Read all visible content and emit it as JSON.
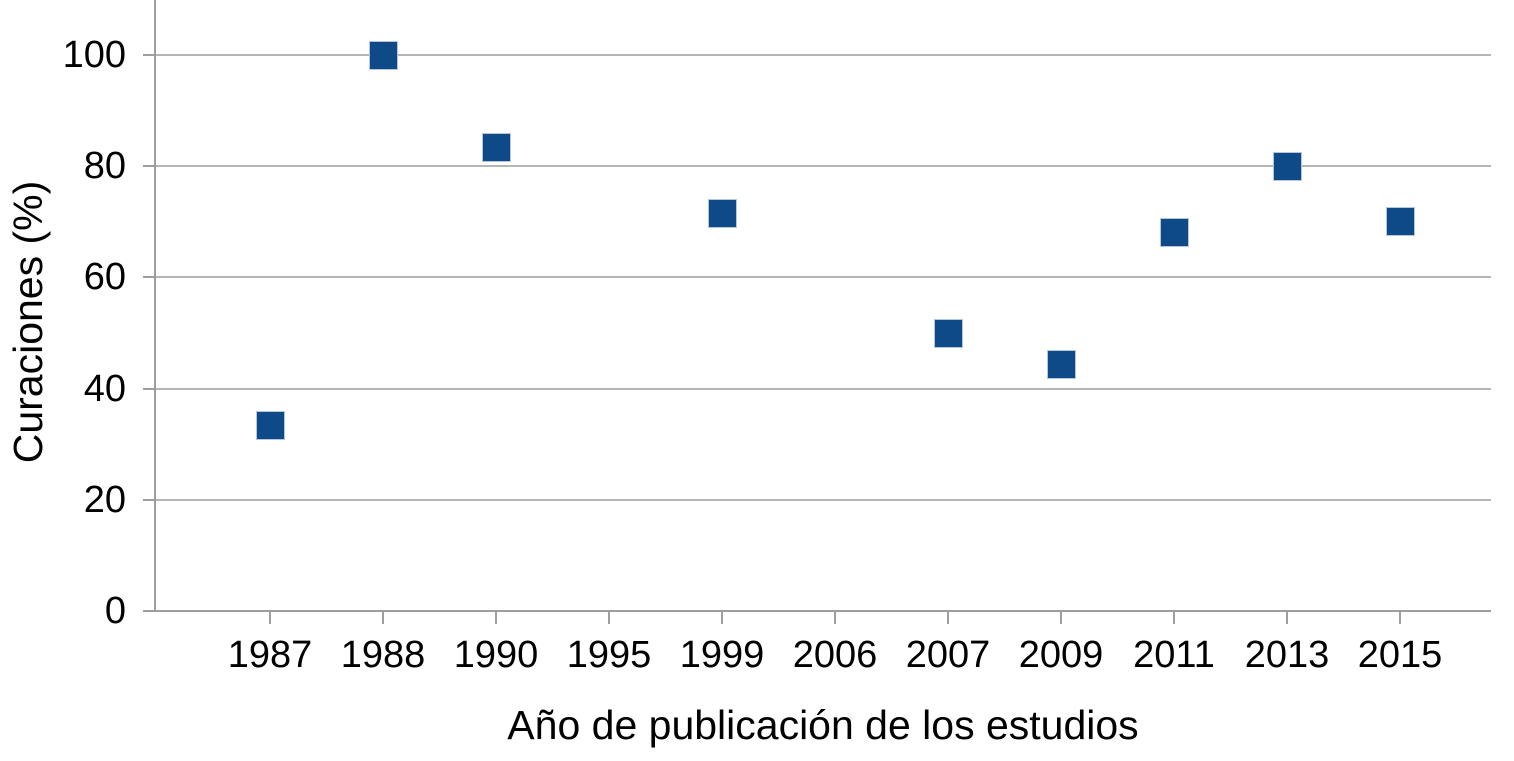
{
  "chart_data": {
    "type": "scatter",
    "title": "",
    "xlabel": "Año de publicación de los estudios",
    "ylabel": "Curaciones (%)",
    "categories": [
      "1987",
      "1988",
      "1990",
      "1995",
      "1999",
      "2006",
      "2007",
      "2009",
      "2011",
      "2013",
      "2015"
    ],
    "values": [
      33.3,
      100,
      83.3,
      null,
      71.5,
      null,
      50,
      44.4,
      68,
      80,
      70
    ],
    "ylim": [
      0,
      110
    ],
    "yticks": [
      0,
      20,
      40,
      60,
      80,
      100
    ],
    "grid": "horizontal-only",
    "legend": "none",
    "marker_shape": "square",
    "colors": {
      "marker_fill": "#0e4a87",
      "marker_edge": "#b4c6d8",
      "gridline": "#b5b5b5",
      "axis_line": "#9e9e9e",
      "text": "#000000",
      "background": "#ffffff"
    }
  }
}
